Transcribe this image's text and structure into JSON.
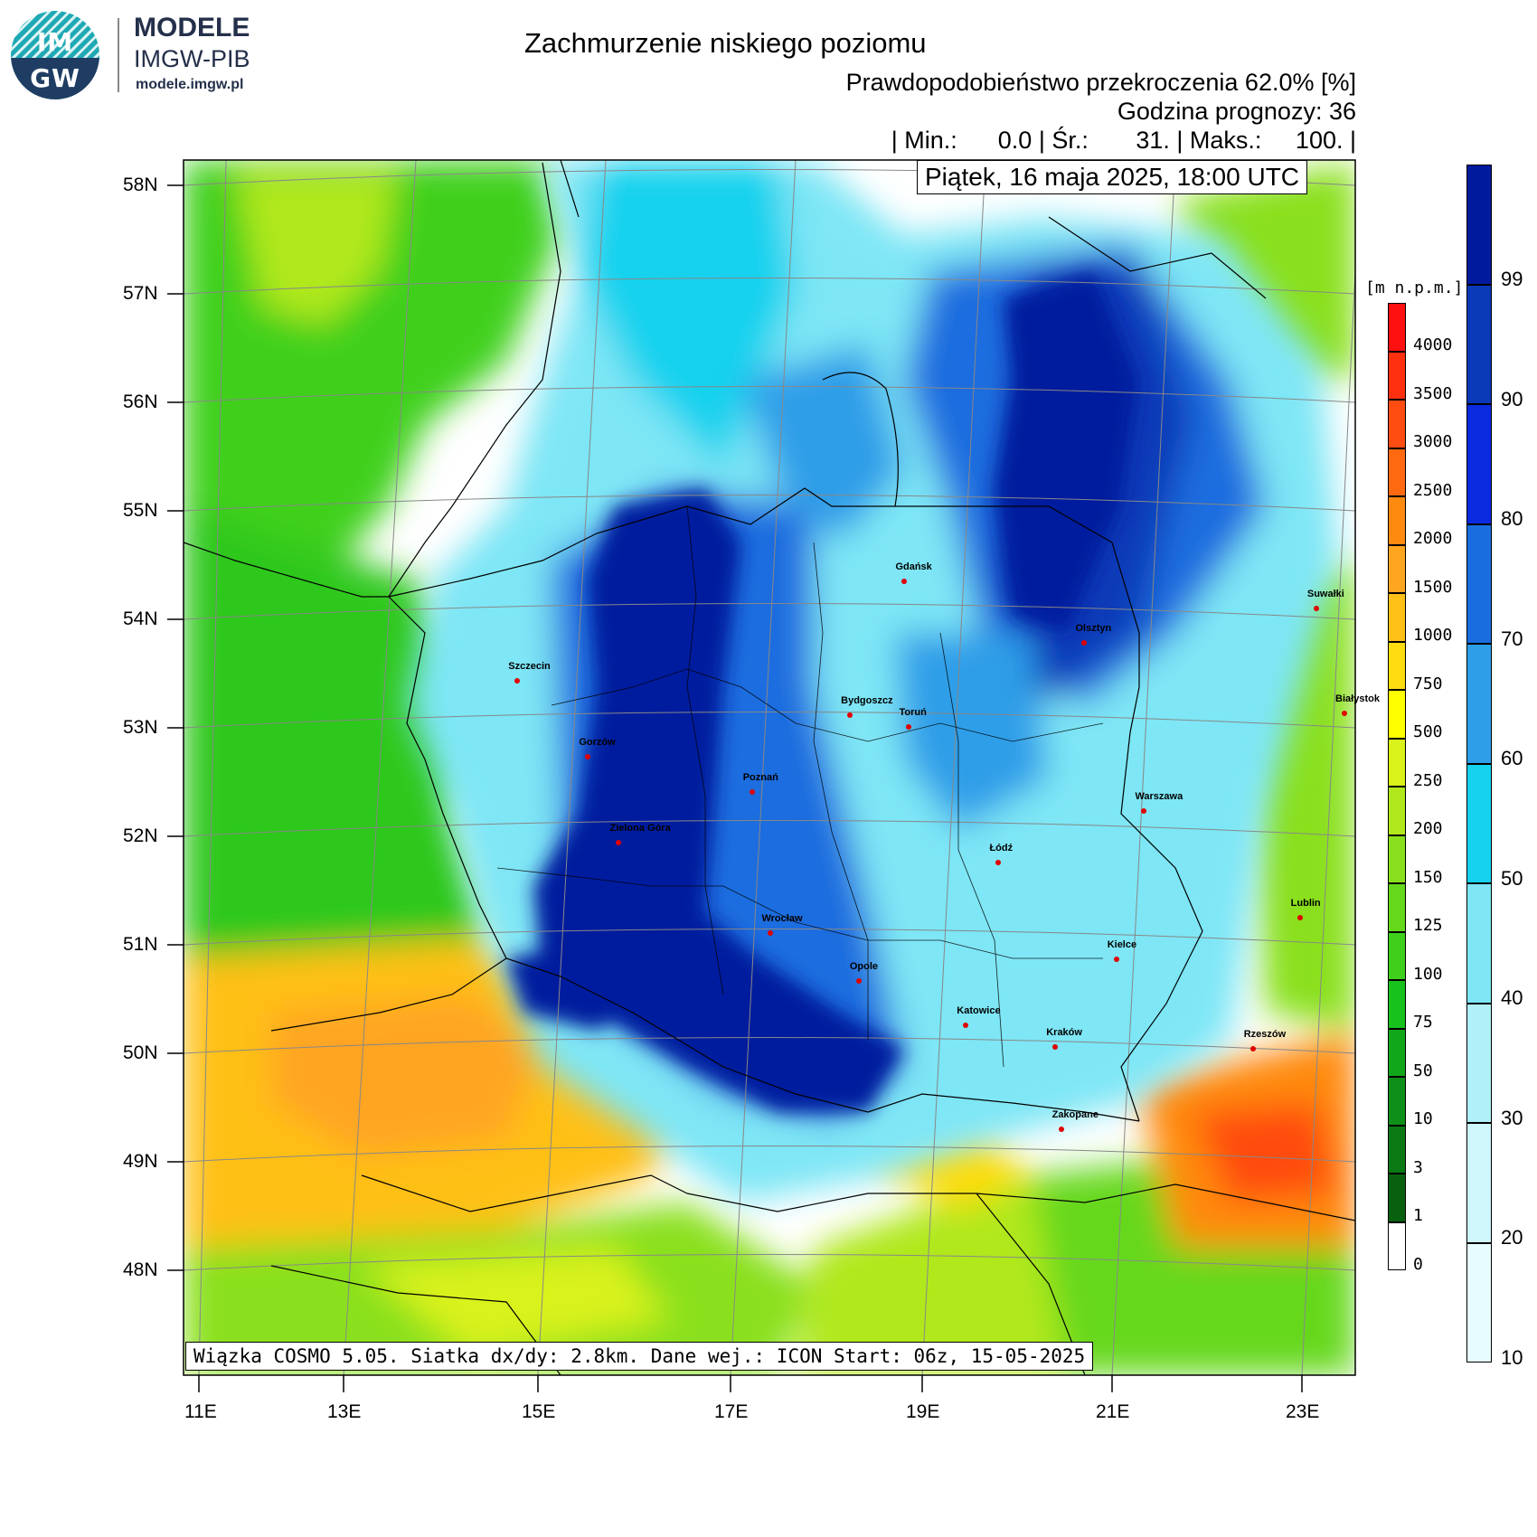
{
  "branding": {
    "logo_text_top": "IM",
    "logo_text_bottom": "GW",
    "name": "MODELE",
    "org": "IMGW-PIB",
    "url": "modele.imgw.pl"
  },
  "header": {
    "title": "Zachmurzenie niskiego poziomu",
    "subtitle": "Prawdopodobieństwo przekroczenia 62.0% [%]",
    "forecast_hour": "Godzina prognozy: 36",
    "stats": "| Min.:      0.0 | Śr.:       31. | Maks.:     100. |",
    "valid_time": "Piątek, 16 maja 2025, 18:00 UTC"
  },
  "footer": {
    "model_info": "Wiązka COSMO 5.05. Siatka dx/dy: 2.8km. Dane wej.: ICON Start: 06z, 15-05-2025"
  },
  "axes": {
    "lat_labels": [
      "58N",
      "57N",
      "56N",
      "55N",
      "54N",
      "53N",
      "52N",
      "51N",
      "50N",
      "49N",
      "48N"
    ],
    "lon_labels": [
      "11E",
      "13E",
      "15E",
      "17E",
      "19E",
      "21E",
      "23E"
    ]
  },
  "cities": [
    {
      "name": "Gdańsk",
      "lon": 18.65,
      "lat": 54.35
    },
    {
      "name": "Olsztyn",
      "lon": 20.49,
      "lat": 53.78
    },
    {
      "name": "Suwałki",
      "lon": 22.93,
      "lat": 54.1
    },
    {
      "name": "Białystok",
      "lon": 23.16,
      "lat": 53.13
    },
    {
      "name": "Szczecin",
      "lon": 14.55,
      "lat": 53.43
    },
    {
      "name": "Bydgoszcz",
      "lon": 18.0,
      "lat": 53.12
    },
    {
      "name": "Toruń",
      "lon": 18.6,
      "lat": 53.01
    },
    {
      "name": "Gorzów",
      "lon": 15.24,
      "lat": 52.73
    },
    {
      "name": "Poznań",
      "lon": 16.93,
      "lat": 52.41
    },
    {
      "name": "Warszawa",
      "lon": 21.01,
      "lat": 52.23
    },
    {
      "name": "Zielona Góra",
      "lon": 15.51,
      "lat": 51.94
    },
    {
      "name": "Łódź",
      "lon": 19.46,
      "lat": 51.76
    },
    {
      "name": "Lublin",
      "lon": 22.57,
      "lat": 51.25
    },
    {
      "name": "Wrocław",
      "lon": 17.04,
      "lat": 51.11
    },
    {
      "name": "Kielce",
      "lon": 20.63,
      "lat": 50.87
    },
    {
      "name": "Opole",
      "lon": 17.93,
      "lat": 50.67
    },
    {
      "name": "Rzeszów",
      "lon": 22.0,
      "lat": 50.04
    },
    {
      "name": "Katowice",
      "lon": 19.02,
      "lat": 50.26
    },
    {
      "name": "Kraków",
      "lon": 19.94,
      "lat": 50.06
    },
    {
      "name": "Zakopane",
      "lon": 19.95,
      "lat": 49.3
    }
  ],
  "cloud_legend": {
    "values": [
      "99",
      "90",
      "80",
      "70",
      "60",
      "50",
      "40",
      "30",
      "20",
      "10"
    ],
    "colors": [
      "#001a9e",
      "#0a3ab8",
      "#0a2be0",
      "#1a6ddf",
      "#2f9ee8",
      "#16d2ee",
      "#7ee6f5",
      "#b0f0f8",
      "#cef6fb",
      "#e6fcfe"
    ]
  },
  "terrain_legend": {
    "unit": "[m n.p.m.]",
    "values": [
      "4000",
      "3500",
      "3000",
      "2500",
      "2000",
      "1500",
      "1000",
      "750",
      "500",
      "250",
      "200",
      "150",
      "125",
      "100",
      "75",
      "50",
      "10",
      "3",
      "1",
      "0"
    ],
    "colors": [
      "#ff1010",
      "#ff3010",
      "#ff4c10",
      "#ff6a10",
      "#ff8a10",
      "#ffa520",
      "#ffc018",
      "#ffdc10",
      "#ffff00",
      "#d9f21a",
      "#b0e81c",
      "#8ae01c",
      "#66d81c",
      "#3fd01c",
      "#18c21c",
      "#10a81a",
      "#0e9018",
      "#0b7a14",
      "#096110",
      "#ffffff"
    ]
  }
}
